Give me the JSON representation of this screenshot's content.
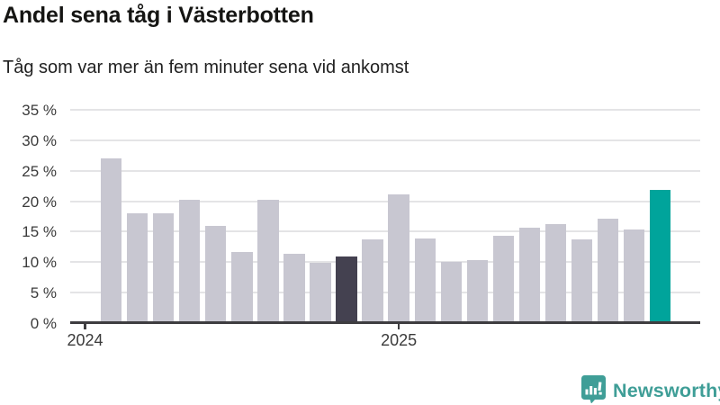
{
  "header": {
    "title": "Andel sena tåg i Västerbotten",
    "subtitle": "Tåg som var mer än fem minuter sena vid ankomst"
  },
  "chart_data": {
    "type": "bar",
    "title": "Andel sena tåg i Västerbotten",
    "subtitle": "Tåg som var mer än fem minuter sena vid ankomst",
    "unit": "%",
    "bar_period": "monthly",
    "values": [
      27,
      18,
      18,
      20.2,
      16,
      11.6,
      20.2,
      11.3,
      9.9,
      11,
      13.8,
      21.1,
      13.9,
      10,
      10.3,
      14.4,
      15.7,
      16.2,
      13.7,
      17.2,
      15.4,
      21.8
    ],
    "highlights": {
      "dark_index": 9,
      "accent_index": 21
    },
    "colors": {
      "default_bar": "#c8c7d1",
      "dark_bar": "#444150",
      "accent_bar": "#00a49b",
      "gridline": "#e4e4e6",
      "axis": "#3e3d40"
    },
    "ylim": [
      0,
      35
    ],
    "grid": "horizontal",
    "legend": "none",
    "y_ticks": [
      {
        "value": 0,
        "label": "0 %"
      },
      {
        "value": 5,
        "label": "5 %"
      },
      {
        "value": 10,
        "label": "10 %"
      },
      {
        "value": 15,
        "label": "15 %"
      },
      {
        "value": 20,
        "label": "20 %"
      },
      {
        "value": 25,
        "label": "25 %"
      },
      {
        "value": 30,
        "label": "30 %"
      },
      {
        "value": 35,
        "label": "35 %"
      }
    ],
    "x_ticks": [
      {
        "label": "2024",
        "bar_index_position": -1
      },
      {
        "label": "2025",
        "bar_index_position": 11
      }
    ]
  },
  "footer": {
    "logo_text": "Newsworthy",
    "logo_color": "#3f9e97"
  }
}
